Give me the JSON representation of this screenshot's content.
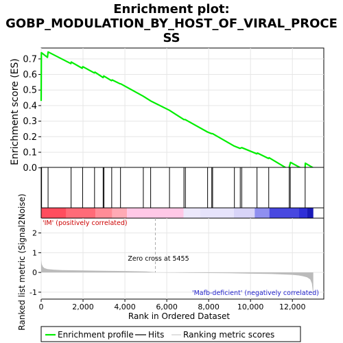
{
  "chart_data": {
    "type": "line",
    "title_line1": "Enrichment plot:",
    "title_line2": "GOBP_MODULATION_BY_HOST_OF_VIRAL_PROCE",
    "title_line3": "SS",
    "es_ylabel": "Enrichment score (ES)",
    "metric_ylabel_line1": "Ranked list metric (Signal2Noise)",
    "xlabel": "Rank in Ordered Dataset",
    "xlim": [
      0,
      13500
    ],
    "es_ylim": [
      -0.05,
      0.77
    ],
    "es_yticks": [
      "0.0",
      "0.1",
      "0.2",
      "0.3",
      "0.4",
      "0.5",
      "0.6",
      "0.7"
    ],
    "es_ytick_values": [
      0.0,
      0.1,
      0.2,
      0.3,
      0.4,
      0.5,
      0.6,
      0.7
    ],
    "metric_ylim": [
      -1.35,
      2.75
    ],
    "metric_yticks": [
      "-1",
      "0",
      "1",
      "2"
    ],
    "metric_ytick_values": [
      -1,
      0,
      1,
      2
    ],
    "xticks": [
      "0",
      "2,000",
      "4,000",
      "6,000",
      "8,000",
      "10,000",
      "12,000"
    ],
    "xtick_values": [
      0,
      2000,
      4000,
      6000,
      8000,
      10000,
      12000
    ],
    "pos_label": "'IM' (positively correlated)",
    "neg_label": "'Mafb-deficient' (negatively correlated)",
    "zero_cross_label": "Zero cross at 5455",
    "zero_cross": 5455,
    "n_genes": 13000,
    "es_profile": {
      "x": [
        0,
        10,
        300,
        330,
        1420,
        1440,
        1960,
        1990,
        2540,
        2570,
        2960,
        2990,
        3360,
        3390,
        3770,
        3800,
        4880,
        5230,
        6120,
        6820,
        6880,
        7950,
        8140,
        8190,
        9220,
        9500,
        9580,
        10300,
        10330,
        10860,
        10890,
        11820,
        11880,
        11910,
        12600,
        12620,
        13000
      ],
      "y": [
        0.43,
        0.74,
        0.71,
        0.745,
        0.67,
        0.68,
        0.64,
        0.65,
        0.61,
        0.615,
        0.58,
        0.59,
        0.56,
        0.565,
        0.54,
        0.54,
        0.46,
        0.43,
        0.37,
        0.31,
        0.31,
        0.23,
        0.22,
        0.22,
        0.14,
        0.125,
        0.13,
        0.09,
        0.095,
        0.06,
        0.065,
        -0.01,
        0.02,
        0.035,
        -0.015,
        0.03,
        0.0
      ]
    },
    "hits": [
      20,
      330,
      1430,
      1980,
      2550,
      2960,
      3000,
      3370,
      3790,
      4880,
      5230,
      6130,
      6820,
      6890,
      7950,
      8150,
      8190,
      9230,
      9510,
      9580,
      10310,
      10870,
      11850,
      11900,
      12610
    ],
    "metric_profile": {
      "x": [
        0,
        30,
        80,
        150,
        300,
        600,
        1000,
        2000,
        3000,
        4000,
        5000,
        5400,
        5455,
        5460,
        6000,
        7000,
        8000,
        9000,
        10000,
        11000,
        11500,
        12000,
        12300,
        12500,
        12700,
        12850,
        12930,
        12970,
        13000
      ],
      "y": [
        0.65,
        0.42,
        0.3,
        0.22,
        0.17,
        0.14,
        0.12,
        0.1,
        0.085,
        0.07,
        0.05,
        0.02,
        0.0,
        -0.005,
        -0.01,
        -0.02,
        -0.03,
        -0.04,
        -0.06,
        -0.08,
        -0.1,
        -0.12,
        -0.15,
        -0.19,
        -0.25,
        -0.35,
        -0.55,
        -0.9,
        -1.2
      ]
    },
    "legend": [
      "Enrichment profile",
      "Hits",
      "Ranking metric scores"
    ],
    "grid": true,
    "colors": {
      "es_line": "#00ee00",
      "hits": "#000000",
      "metric_fill": "#bbbbbb",
      "pos_text": "#cc0000",
      "neg_text": "#2222cc",
      "grid": "#e6e6e6",
      "legend_metric": "#cccccc"
    },
    "heatmap_colors": [
      {
        "from": 0,
        "to": 1200,
        "color": "#ff4d5e"
      },
      {
        "from": 1200,
        "to": 2600,
        "color": "#ff6b78"
      },
      {
        "from": 2600,
        "to": 3400,
        "color": "#ff8c97"
      },
      {
        "from": 3400,
        "to": 4100,
        "color": "#ffaab5"
      },
      {
        "from": 4100,
        "to": 6800,
        "color": "#ffc8e6"
      },
      {
        "from": 6800,
        "to": 7600,
        "color": "#ece8fb"
      },
      {
        "from": 7600,
        "to": 9200,
        "color": "#e6e3fb"
      },
      {
        "from": 9200,
        "to": 10200,
        "color": "#d8d4f8"
      },
      {
        "from": 10200,
        "to": 10900,
        "color": "#8f8ff0"
      },
      {
        "from": 10900,
        "to": 12300,
        "color": "#4848e0"
      },
      {
        "from": 12300,
        "to": 12700,
        "color": "#2f2fd8"
      },
      {
        "from": 12700,
        "to": 13000,
        "color": "#1a1ab8"
      }
    ]
  }
}
